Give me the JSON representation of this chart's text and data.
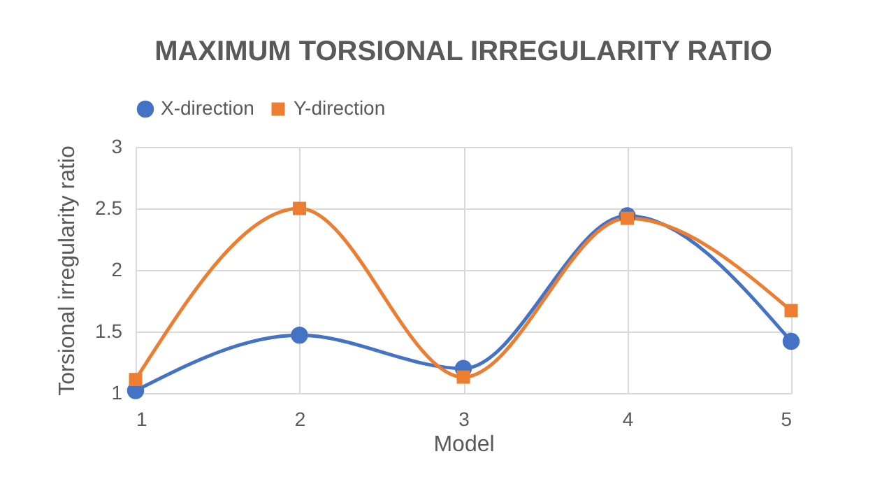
{
  "chart_data": {
    "type": "line",
    "title": "MAXIMUM TORSIONAL IRREGULARITY RATIO",
    "xlabel": "Model",
    "ylabel": "Torsional irregularity ratio",
    "categories": [
      "1",
      "2",
      "3",
      "4",
      "5"
    ],
    "series": [
      {
        "name": "X-direction",
        "color": "#4472c4",
        "marker": "circle",
        "values": [
          1.02,
          1.47,
          1.2,
          2.44,
          1.42
        ]
      },
      {
        "name": "Y-direction",
        "color": "#ed7d31",
        "marker": "square",
        "values": [
          1.11,
          2.5,
          1.13,
          2.42,
          1.67
        ]
      }
    ],
    "ylim": [
      1,
      3
    ],
    "yticks": [
      1,
      1.5,
      2,
      2.5,
      3
    ],
    "grid": true,
    "legend": "top"
  }
}
